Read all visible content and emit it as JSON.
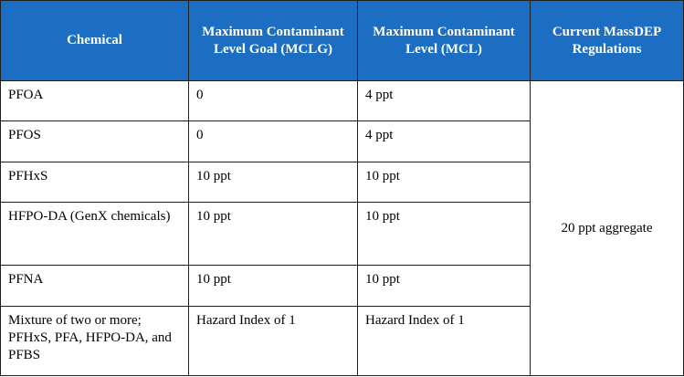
{
  "table": {
    "headers": [
      "Chemical",
      "Maximum Contaminant Level Goal (MCLG)",
      "Maximum Contaminant Level (MCL)",
      "Current MassDEP Regulations"
    ],
    "rows": [
      {
        "chemical": "PFOA",
        "mclg": "0",
        "mcl": "4 ppt"
      },
      {
        "chemical": "PFOS",
        "mclg": "0",
        "mcl": "4 ppt"
      },
      {
        "chemical": "PFHxS",
        "mclg": "10 ppt",
        "mcl": "10 ppt"
      },
      {
        "chemical": "HFPO-DA (GenX chemicals)",
        "mclg": "10 ppt",
        "mcl": "10 ppt"
      },
      {
        "chemical": "PFNA",
        "mclg": "10 ppt",
        "mcl": "10 ppt"
      },
      {
        "chemical": "Mixture of two or more; PFHxS, PFA, HFPO-DA, and PFBS",
        "mclg": "Hazard Index of 1",
        "mcl": "Hazard Index of 1"
      }
    ],
    "massdep_regulation": "20 ppt aggregate"
  },
  "colors": {
    "header_background": "#1b6ec2",
    "header_text": "#ffffff",
    "border": "#1f1f1f"
  }
}
